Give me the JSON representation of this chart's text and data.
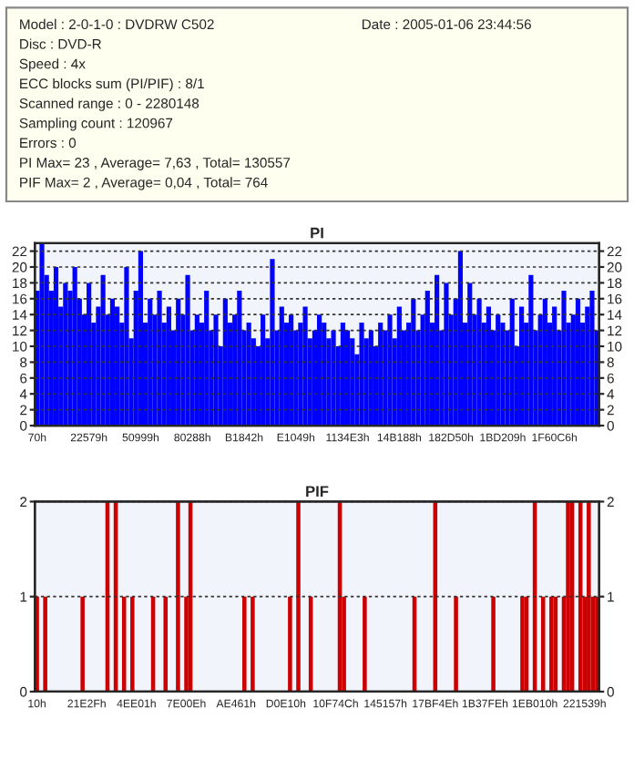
{
  "chart_data": [
    {
      "type": "bar",
      "title": "PI",
      "annotations": [
        "Date : 2005-01-06 23:44:56",
        "Model : 2-0-1-0 : DVDRW C502",
        "Disc : DVD-R",
        "Speed : 4x",
        "ECC blocks sum (PI/PIF) : 8/1",
        "Scanned range : 0 - 2280148",
        "Sampling count : 120967",
        "Errors : 0",
        "PI Max= 23 , Average= 7,63 , Total= 130557",
        "PIF Max= 2 , Average= 0,04 , Total= 764"
      ],
      "categories": [
        "70h",
        null,
        null,
        null,
        null,
        null,
        null,
        null,
        null,
        null,
        null,
        "22579h",
        null,
        null,
        null,
        null,
        null,
        null,
        null,
        null,
        null,
        null,
        "50999h",
        null,
        null,
        null,
        null,
        null,
        null,
        null,
        null,
        null,
        null,
        "80288h",
        null,
        null,
        null,
        null,
        null,
        null,
        null,
        null,
        null,
        null,
        "B1842h",
        null,
        null,
        null,
        null,
        null,
        null,
        null,
        null,
        null,
        null,
        "E1049h",
        null,
        null,
        null,
        null,
        null,
        null,
        null,
        null,
        null,
        null,
        "1134E3h",
        null,
        null,
        null,
        null,
        null,
        null,
        null,
        null,
        null,
        null,
        "14B188h",
        null,
        null,
        null,
        null,
        null,
        null,
        null,
        null,
        null,
        null,
        "182D50h",
        null,
        null,
        null,
        null,
        null,
        null,
        null,
        null,
        null,
        null,
        "1BD209h",
        null,
        null,
        null,
        null,
        null,
        null,
        null,
        null,
        null,
        null,
        "1F60C6h",
        null,
        null,
        null,
        null,
        null,
        null,
        null,
        null,
        null
      ],
      "series": [
        {
          "color": "#0000ff",
          "values": [
            17,
            23,
            19,
            17,
            20,
            15,
            18,
            17,
            20,
            16,
            14,
            18,
            13,
            15,
            19,
            14,
            16,
            15,
            13,
            20,
            11,
            17,
            22,
            13,
            16,
            14,
            17,
            13,
            15,
            12,
            16,
            14,
            19,
            12,
            14,
            13,
            17,
            12,
            14,
            10,
            16,
            13,
            14,
            17,
            12,
            13,
            11,
            10,
            14,
            11,
            21,
            12,
            15,
            13,
            14,
            12,
            13,
            15,
            11,
            12,
            14,
            13,
            11,
            12,
            10,
            13,
            12,
            11,
            9,
            13,
            11,
            12,
            10,
            13,
            12,
            14,
            11,
            15,
            12,
            13,
            16,
            12,
            14,
            17,
            13,
            19,
            12,
            18,
            14,
            16,
            22,
            13,
            18,
            14,
            16,
            13,
            15,
            12,
            14,
            13,
            12,
            16,
            10,
            15,
            13,
            19,
            12,
            14,
            16,
            13,
            15,
            12,
            17,
            13,
            14,
            16,
            13,
            15,
            17,
            12
          ]
        }
      ],
      "ylim": [
        0,
        23
      ],
      "yticks": [
        0,
        2,
        4,
        6,
        8,
        10,
        12,
        14,
        16,
        18,
        20,
        22
      ],
      "y2lim": [
        0,
        23
      ],
      "y2ticks": [
        0,
        2,
        4,
        6,
        8,
        10,
        12,
        14,
        16,
        18,
        20,
        22
      ],
      "grid": "y"
    },
    {
      "type": "bar",
      "title": "PIF",
      "categories": [
        "10h",
        null,
        null,
        null,
        null,
        null,
        null,
        null,
        null,
        null,
        null,
        null,
        "21E2Fh",
        null,
        null,
        null,
        null,
        null,
        null,
        null,
        null,
        null,
        null,
        null,
        "4EE01h",
        null,
        null,
        null,
        null,
        null,
        null,
        null,
        null,
        null,
        null,
        null,
        "7E00Eh",
        null,
        null,
        null,
        null,
        null,
        null,
        null,
        null,
        null,
        null,
        null,
        "AE461h",
        null,
        null,
        null,
        null,
        null,
        null,
        null,
        null,
        null,
        null,
        null,
        "D0E10h",
        null,
        null,
        null,
        null,
        null,
        null,
        null,
        null,
        null,
        null,
        null,
        "10F74Ch",
        null,
        null,
        null,
        null,
        null,
        null,
        null,
        null,
        null,
        null,
        null,
        "145157h",
        null,
        null,
        null,
        null,
        null,
        null,
        null,
        null,
        null,
        null,
        null,
        "17BF4Eh",
        null,
        null,
        null,
        null,
        null,
        null,
        null,
        null,
        null,
        null,
        null,
        "1B37FEh",
        null,
        null,
        null,
        null,
        null,
        null,
        null,
        null,
        null,
        null,
        null,
        "1EB010h",
        null,
        null,
        null,
        null,
        null,
        null,
        null,
        null,
        null,
        null,
        null,
        "221539h",
        null,
        null,
        null
      ],
      "series": [
        {
          "color": "#cc0000",
          "values": [
            1,
            0,
            1,
            0,
            0,
            0,
            0,
            0,
            0,
            0,
            0,
            1,
            0,
            0,
            0,
            0,
            0,
            2,
            0,
            2,
            0,
            1,
            0,
            1,
            0,
            0,
            0,
            0,
            1,
            0,
            0,
            1,
            0,
            0,
            2,
            0,
            1,
            2,
            0,
            0,
            0,
            0,
            0,
            0,
            0,
            0,
            0,
            0,
            0,
            0,
            1,
            0,
            1,
            0,
            0,
            0,
            0,
            0,
            0,
            0,
            0,
            1,
            0,
            2,
            0,
            0,
            1,
            0,
            0,
            0,
            0,
            0,
            0,
            2,
            1,
            0,
            0,
            0,
            0,
            1,
            0,
            0,
            0,
            0,
            0,
            0,
            0,
            0,
            0,
            0,
            0,
            1,
            0,
            0,
            0,
            0,
            2,
            0,
            0,
            0,
            0,
            1,
            0,
            0,
            0,
            0,
            0,
            0,
            0,
            0,
            1,
            0,
            0,
            0,
            0,
            0,
            0,
            1,
            1,
            0,
            2,
            0,
            1,
            0,
            1,
            1,
            0,
            1,
            2,
            2,
            0,
            2,
            1,
            2,
            1,
            1
          ]
        }
      ],
      "ylim": [
        0,
        2
      ],
      "yticks": [
        0,
        1,
        2
      ],
      "y2lim": [
        0,
        2
      ],
      "y2ticks": [
        0,
        1,
        2
      ],
      "grid": "y"
    }
  ]
}
